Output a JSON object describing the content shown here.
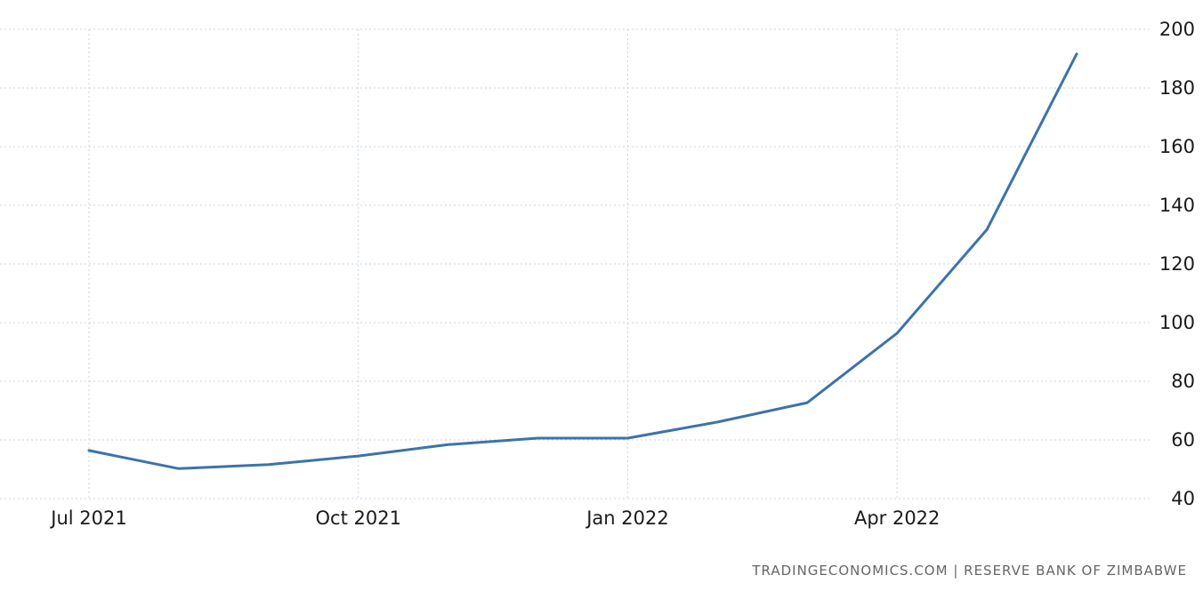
{
  "chart_data": {
    "type": "line",
    "x": [
      "2021-07",
      "2021-08",
      "2021-09",
      "2021-10",
      "2021-11",
      "2021-12",
      "2022-01",
      "2022-02",
      "2022-03",
      "2022-04",
      "2022-05",
      "2022-06"
    ],
    "series": [
      {
        "values": [
          56.4,
          50.2,
          51.6,
          54.5,
          58.4,
          60.6,
          60.6,
          66.1,
          72.7,
          96.4,
          131.7,
          191.6
        ]
      }
    ],
    "x_tick_labels": [
      {
        "x": "2021-07",
        "label": "Jul 2021"
      },
      {
        "x": "2021-10",
        "label": "Oct 2021"
      },
      {
        "x": "2022-01",
        "label": "Jan 2022"
      },
      {
        "x": "2022-04",
        "label": "Apr 2022"
      }
    ],
    "y_ticks": [
      40,
      60,
      80,
      100,
      120,
      140,
      160,
      180,
      200
    ],
    "ylim": [
      40,
      200
    ],
    "y_axis_side": "right",
    "grid": true,
    "line_color": "#3d73a8",
    "title": "",
    "xlabel": "",
    "ylabel": ""
  },
  "source": "TRADINGECONOMICS.COM  |  RESERVE BANK OF ZIMBABWE"
}
